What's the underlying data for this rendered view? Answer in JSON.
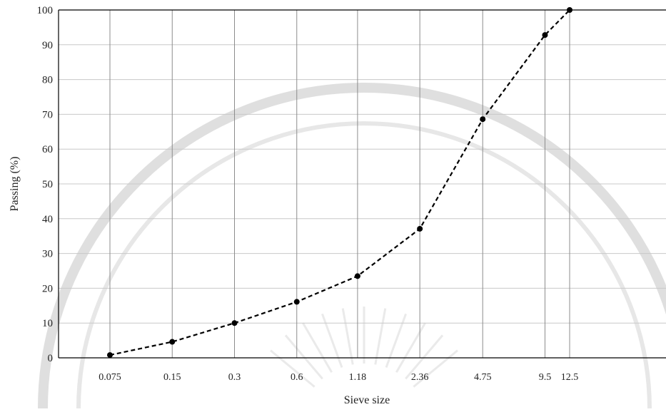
{
  "chart_data": {
    "type": "line",
    "title": "",
    "xlabel": "Sieve size",
    "ylabel": "Passing (%)",
    "ylim": [
      0,
      100
    ],
    "yticks": [
      0,
      10,
      20,
      30,
      40,
      50,
      60,
      70,
      80,
      90,
      100
    ],
    "x_axis_scale": "log",
    "x_tick_labels": [
      "0.075",
      "0.15",
      "0.3",
      "0.6",
      "1.18",
      "2.36",
      "4.75",
      "9.5",
      "12.5"
    ],
    "grid": "horizontal gridlines; vertical lines at each sieve size",
    "legend": "none",
    "series": [
      {
        "x": [
          0.075,
          0.15,
          0.3,
          0.6,
          1.18,
          2.36,
          4.75,
          9.5,
          12.5
        ],
        "y": [
          0.8,
          4.6,
          10.0,
          16.1,
          23.5,
          37.1,
          68.6,
          92.8,
          100.0
        ],
        "line_style": "dashed",
        "color": "#000000"
      }
    ]
  }
}
